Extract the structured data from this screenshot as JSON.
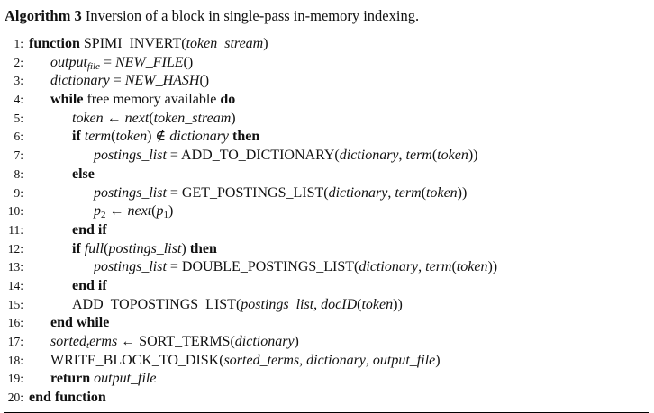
{
  "caption": {
    "label": "Algorithm 3",
    "text": "Inversion of a block in single-pass in-memory indexing."
  },
  "lines": [
    {
      "num": "1:",
      "indent": 0,
      "parts": [
        {
          "t": "function",
          "s": "kw"
        },
        {
          "t": " SPIMI_INVERT(",
          "s": ""
        },
        {
          "t": "token_stream",
          "s": "it"
        },
        {
          "t": ")",
          "s": ""
        }
      ]
    },
    {
      "num": "2:",
      "indent": 1,
      "parts": [
        {
          "t": "output",
          "s": "it"
        },
        {
          "t": "file",
          "s": "sub it"
        },
        {
          "t": " = ",
          "s": ""
        },
        {
          "t": "NEW_FILE",
          "s": "it"
        },
        {
          "t": "()",
          "s": ""
        }
      ]
    },
    {
      "num": "3:",
      "indent": 1,
      "parts": [
        {
          "t": "dictionary",
          "s": "it"
        },
        {
          "t": " = ",
          "s": ""
        },
        {
          "t": "NEW_HASH",
          "s": "it"
        },
        {
          "t": "()",
          "s": ""
        }
      ]
    },
    {
      "num": "4:",
      "indent": 1,
      "parts": [
        {
          "t": "while",
          "s": "kw"
        },
        {
          "t": " free memory available ",
          "s": ""
        },
        {
          "t": "do",
          "s": "kw"
        }
      ]
    },
    {
      "num": "5:",
      "indent": 2,
      "parts": [
        {
          "t": "token",
          "s": "it"
        },
        {
          "t": " ← ",
          "s": ""
        },
        {
          "t": "next",
          "s": "it"
        },
        {
          "t": "(",
          "s": ""
        },
        {
          "t": "token_stream",
          "s": "it"
        },
        {
          "t": ")",
          "s": ""
        }
      ]
    },
    {
      "num": "6:",
      "indent": 2,
      "parts": [
        {
          "t": "if",
          "s": "kw"
        },
        {
          "t": " ",
          "s": ""
        },
        {
          "t": "term",
          "s": "it"
        },
        {
          "t": "(",
          "s": ""
        },
        {
          "t": "token",
          "s": "it"
        },
        {
          "t": ") ∉ ",
          "s": ""
        },
        {
          "t": "dictionary",
          "s": "it"
        },
        {
          "t": " ",
          "s": ""
        },
        {
          "t": "then",
          "s": "kw"
        }
      ]
    },
    {
      "num": "7:",
      "indent": 3,
      "parts": [
        {
          "t": "postings_list",
          "s": "it"
        },
        {
          "t": " = ADD_TO_DICTIONARY(",
          "s": ""
        },
        {
          "t": "dictionary",
          "s": "it"
        },
        {
          "t": ", ",
          "s": ""
        },
        {
          "t": "term",
          "s": "it"
        },
        {
          "t": "(",
          "s": ""
        },
        {
          "t": "token",
          "s": "it"
        },
        {
          "t": "))",
          "s": ""
        }
      ]
    },
    {
      "num": "8:",
      "indent": 2,
      "parts": [
        {
          "t": "else",
          "s": "kw"
        }
      ]
    },
    {
      "num": "9:",
      "indent": 3,
      "parts": [
        {
          "t": "postings_list",
          "s": "it"
        },
        {
          "t": " = GET_POSTINGS_LIST(",
          "s": ""
        },
        {
          "t": "dictionary",
          "s": "it"
        },
        {
          "t": ", ",
          "s": ""
        },
        {
          "t": "term",
          "s": "it"
        },
        {
          "t": "(",
          "s": ""
        },
        {
          "t": "token",
          "s": "it"
        },
        {
          "t": "))",
          "s": ""
        }
      ]
    },
    {
      "num": "10:",
      "indent": 3,
      "parts": [
        {
          "t": "p",
          "s": "it"
        },
        {
          "t": "2",
          "s": "sub"
        },
        {
          "t": " ← ",
          "s": ""
        },
        {
          "t": "next",
          "s": "it"
        },
        {
          "t": "(",
          "s": ""
        },
        {
          "t": "p",
          "s": "it"
        },
        {
          "t": "1",
          "s": "sub"
        },
        {
          "t": ")",
          "s": ""
        }
      ]
    },
    {
      "num": "11:",
      "indent": 2,
      "parts": [
        {
          "t": "end if",
          "s": "kw"
        }
      ]
    },
    {
      "num": "12:",
      "indent": 2,
      "parts": [
        {
          "t": "if",
          "s": "kw"
        },
        {
          "t": " ",
          "s": ""
        },
        {
          "t": "full",
          "s": "it"
        },
        {
          "t": "(",
          "s": ""
        },
        {
          "t": "postings_list",
          "s": "it"
        },
        {
          "t": ") ",
          "s": ""
        },
        {
          "t": "then",
          "s": "kw"
        }
      ]
    },
    {
      "num": "13:",
      "indent": 3,
      "parts": [
        {
          "t": "postings_list",
          "s": "it"
        },
        {
          "t": " = DOUBLE_POSTINGS_LIST(",
          "s": ""
        },
        {
          "t": "dictionary",
          "s": "it"
        },
        {
          "t": ", ",
          "s": ""
        },
        {
          "t": "term",
          "s": "it"
        },
        {
          "t": "(",
          "s": ""
        },
        {
          "t": "token",
          "s": "it"
        },
        {
          "t": "))",
          "s": ""
        }
      ]
    },
    {
      "num": "14:",
      "indent": 2,
      "parts": [
        {
          "t": "end if",
          "s": "kw"
        }
      ]
    },
    {
      "num": "15:",
      "indent": 2,
      "parts": [
        {
          "t": "ADD_TOPOSTINGS_LIST(",
          "s": ""
        },
        {
          "t": "postings_list",
          "s": "it"
        },
        {
          "t": ", ",
          "s": ""
        },
        {
          "t": "docID",
          "s": "it"
        },
        {
          "t": "(",
          "s": ""
        },
        {
          "t": "token",
          "s": "it"
        },
        {
          "t": "))",
          "s": ""
        }
      ]
    },
    {
      "num": "16:",
      "indent": 1,
      "parts": [
        {
          "t": "end while",
          "s": "kw"
        }
      ]
    },
    {
      "num": "17:",
      "indent": 1,
      "parts": [
        {
          "t": "sorted",
          "s": "it"
        },
        {
          "t": "t",
          "s": "sub it"
        },
        {
          "t": "erms",
          "s": "it"
        },
        {
          "t": " ← SORT_TERMS(",
          "s": ""
        },
        {
          "t": "dictionary",
          "s": "it"
        },
        {
          "t": ")",
          "s": ""
        }
      ]
    },
    {
      "num": "18:",
      "indent": 1,
      "parts": [
        {
          "t": "WRITE_BLOCK_TO_DISK(",
          "s": ""
        },
        {
          "t": "sorted_terms",
          "s": "it"
        },
        {
          "t": ", ",
          "s": ""
        },
        {
          "t": "dictionary",
          "s": "it"
        },
        {
          "t": ", ",
          "s": ""
        },
        {
          "t": "output_file",
          "s": "it"
        },
        {
          "t": ")",
          "s": ""
        }
      ]
    },
    {
      "num": "19:",
      "indent": 1,
      "parts": [
        {
          "t": "return",
          "s": "kw"
        },
        {
          "t": " ",
          "s": ""
        },
        {
          "t": "output_file",
          "s": "it"
        }
      ]
    },
    {
      "num": "20:",
      "indent": 0,
      "parts": [
        {
          "t": "end function",
          "s": "kw"
        }
      ]
    }
  ]
}
